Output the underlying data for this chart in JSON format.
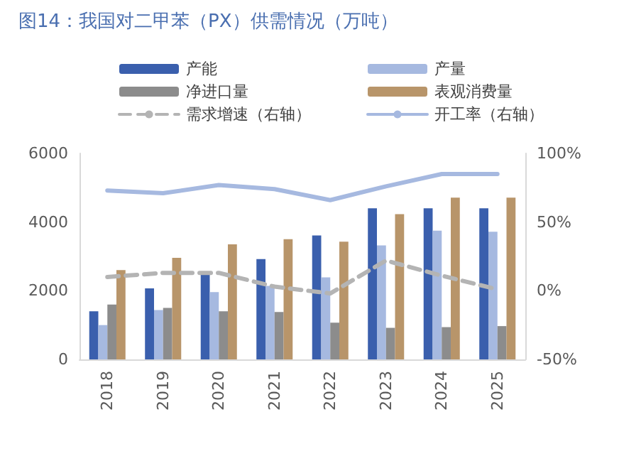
{
  "chart_data": {
    "type": "bar",
    "title": "图14：我国对二甲苯（PX）供需情况（万吨）",
    "categories": [
      "2018",
      "2019",
      "2020",
      "2021",
      "2022",
      "2023",
      "2024",
      "2025"
    ],
    "series": [
      {
        "name": "产能",
        "color": "#3a5fad",
        "values": [
          1400,
          2070,
          2500,
          2920,
          3610,
          4400,
          4400,
          4400
        ]
      },
      {
        "name": "产量",
        "color": "#a6b9e0",
        "values": [
          1000,
          1440,
          1960,
          2140,
          2390,
          3320,
          3750,
          3720
        ]
      },
      {
        "name": "净进口量",
        "color": "#8c8c8c",
        "values": [
          1600,
          1500,
          1400,
          1380,
          1070,
          920,
          940,
          970
        ]
      },
      {
        "name": "表观消费量",
        "color": "#b8956a",
        "values": [
          2600,
          2960,
          3350,
          3500,
          3430,
          4230,
          4710,
          4710
        ]
      },
      {
        "name": "需求增速（右轴）",
        "type": "line",
        "axis": "y2",
        "line_style": "dashed",
        "color": "#b4b4b4",
        "values": [
          10,
          13,
          13,
          3,
          -2,
          22,
          11,
          1
        ]
      },
      {
        "name": "开工率（右轴）",
        "type": "line",
        "axis": "y2",
        "line_style": "solid",
        "color": "#a6b9e0",
        "values": [
          73,
          71,
          77,
          74,
          66,
          76,
          85,
          85
        ]
      }
    ],
    "ylim": [
      0,
      6000
    ],
    "yticks": [
      0,
      2000,
      4000,
      6000
    ],
    "y2lim": [
      -50,
      100
    ],
    "y2ticks": [
      {
        "value": -50,
        "label": "-50%"
      },
      {
        "value": 0,
        "label": "0%"
      },
      {
        "value": 50,
        "label": "50%"
      },
      {
        "value": 100,
        "label": "100%"
      }
    ],
    "marker": "none",
    "grid": false,
    "legend": "top"
  }
}
